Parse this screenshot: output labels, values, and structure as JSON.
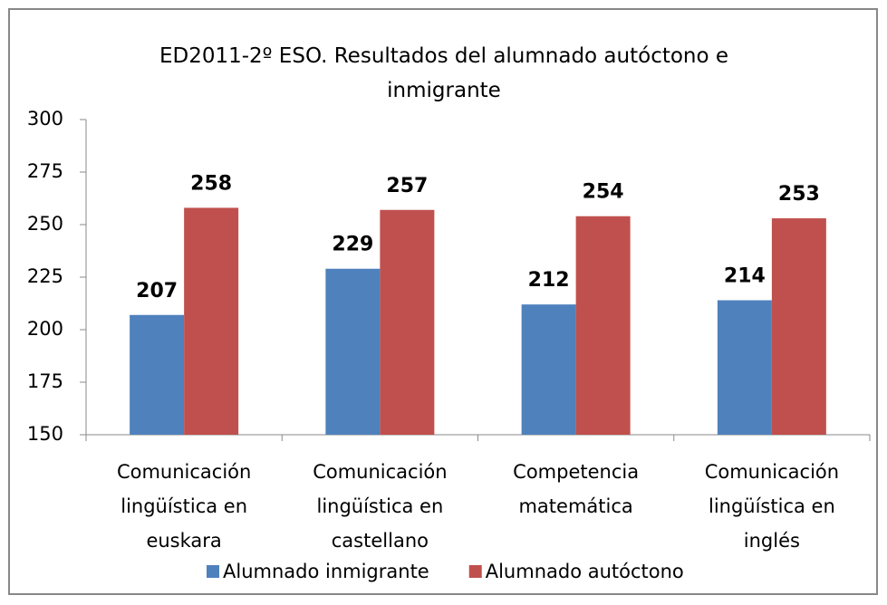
{
  "chart_data": {
    "type": "bar",
    "title": "ED2011-2º ESO. Resultados del alumnado autóctono e inmigrante",
    "categories": [
      "Comunicación lingüística en euskara",
      "Comunicación lingüística en castellano",
      "Competencia matemática",
      "Comunicación lingüística en inglés"
    ],
    "series": [
      {
        "name": "Alumnado inmigrante",
        "color": "#4f81bd",
        "values": [
          207,
          229,
          212,
          214
        ]
      },
      {
        "name": "Alumnado autóctono",
        "color": "#c0504d",
        "values": [
          258,
          257,
          254,
          253
        ]
      }
    ],
    "ylim": [
      150,
      300
    ],
    "yticks": [
      150,
      175,
      200,
      225,
      250,
      275,
      300
    ],
    "grid": false,
    "legend": "bottom"
  }
}
